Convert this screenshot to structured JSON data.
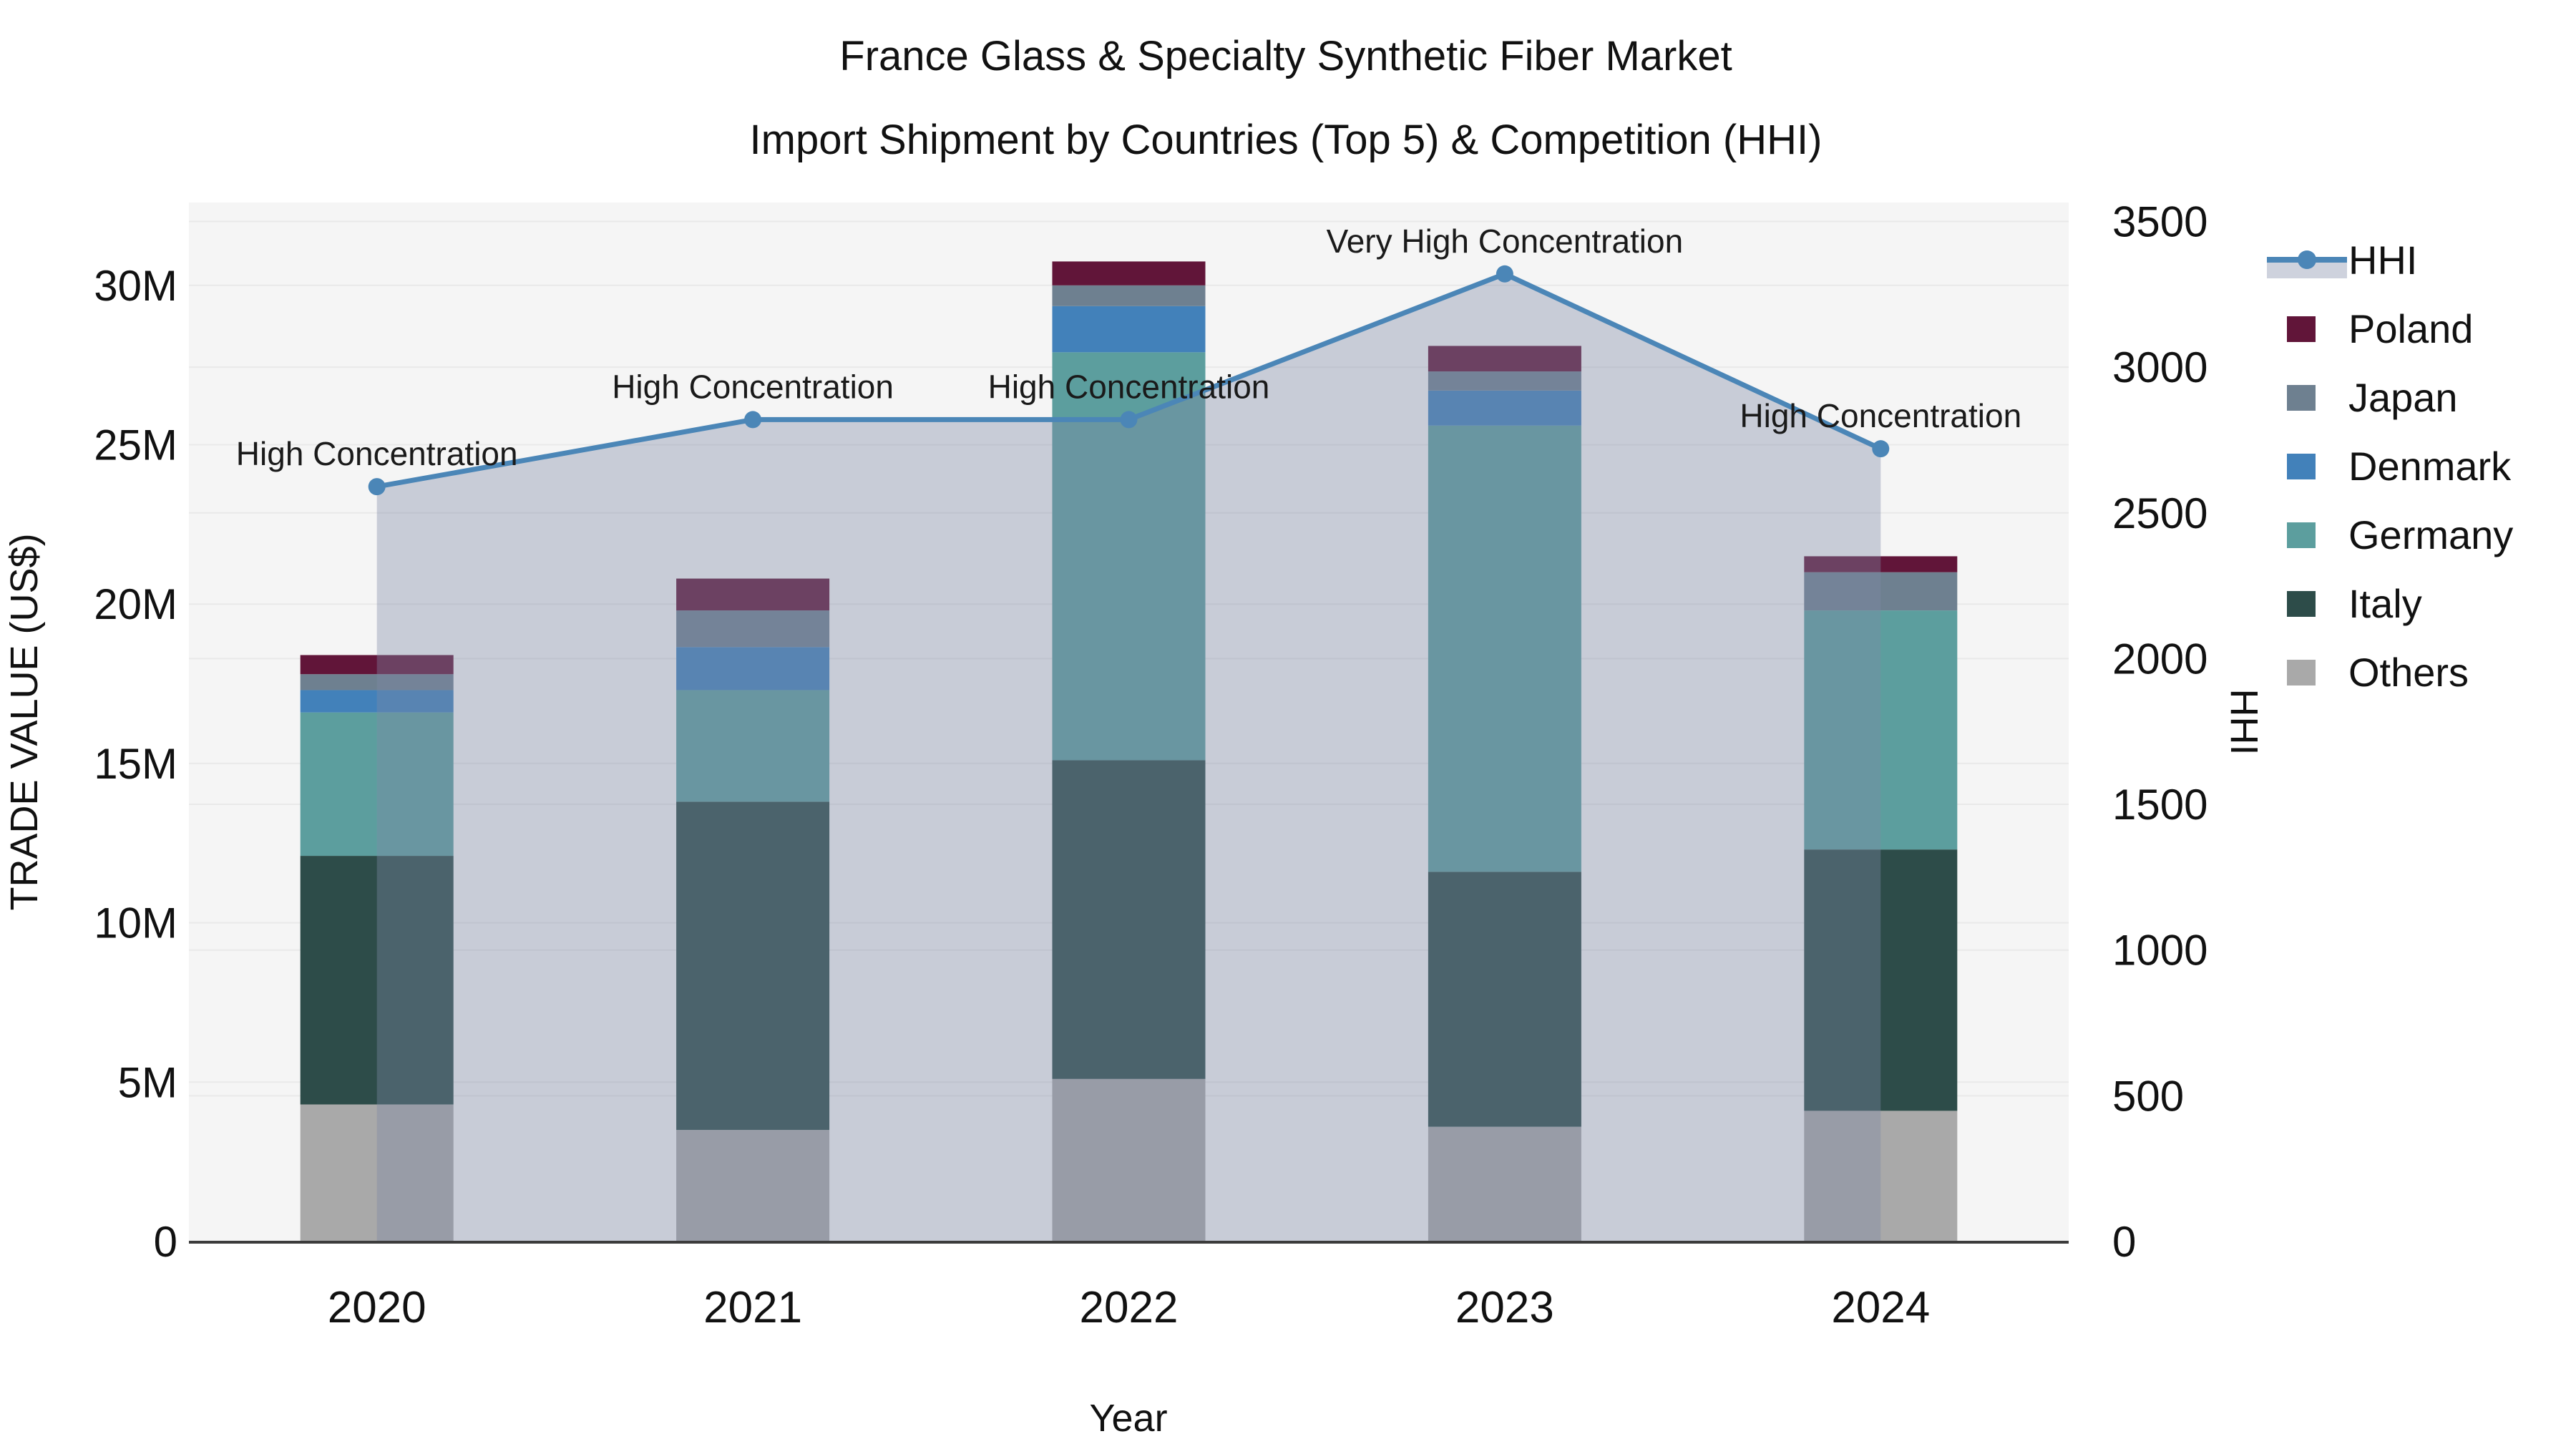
{
  "chart_data": {
    "type": "combo-stacked-bar-line",
    "title_lines": [
      "France Glass & Specialty Synthetic Fiber Market",
      "Import Shipment by Countries (Top 5) & Competition (HHI)"
    ],
    "xlabel": "Year",
    "ylabel_left": "TRADE VALUE (US$)",
    "ylabel_right": "HHI",
    "categories": [
      "2020",
      "2021",
      "2022",
      "2023",
      "2024"
    ],
    "stack_series": [
      {
        "name": "Others",
        "color": "#a9a9a9",
        "values": [
          4.3,
          3.5,
          5.1,
          3.6,
          4.1
        ]
      },
      {
        "name": "Italy",
        "color": "#2d4c49",
        "values": [
          7.8,
          10.3,
          10.0,
          8.0,
          8.2
        ]
      },
      {
        "name": "Germany",
        "color": "#5c9e9e",
        "values": [
          4.5,
          3.5,
          12.8,
          14.0,
          7.5
        ]
      },
      {
        "name": "Denmark",
        "color": "#4281ba",
        "values": [
          0.7,
          1.35,
          1.45,
          1.1,
          0
        ]
      },
      {
        "name": "Japan",
        "color": "#6e8090",
        "values": [
          0.5,
          1.15,
          0.65,
          0.6,
          1.2
        ]
      },
      {
        "name": "Poland",
        "color": "#611539",
        "values": [
          0.6,
          1.0,
          0.75,
          0.8,
          0.5
        ]
      }
    ],
    "line_series": {
      "name": "HHI",
      "color": "#4b86b7",
      "area_fill": "rgba(127,138,165,0.38)",
      "values": [
        2590,
        2820,
        2820,
        3320,
        2720
      ]
    },
    "annotations": [
      "High Concentration",
      "High Concentration",
      "High Concentration",
      "Very High Concentration",
      "High Concentration"
    ],
    "left_ticks": [
      0,
      5,
      10,
      15,
      20,
      25,
      30
    ],
    "left_tick_labels": [
      "0",
      "5M",
      "10M",
      "15M",
      "20M",
      "25M",
      "30M"
    ],
    "right_ticks": [
      0,
      500,
      1000,
      1500,
      2000,
      2500,
      3000,
      3500
    ],
    "right_tick_labels": [
      "0",
      "500",
      "1000",
      "1500",
      "2000",
      "2500",
      "3000",
      "3500"
    ],
    "axis_ranges": {
      "left": [
        0,
        32.6
      ],
      "right": [
        0,
        3565
      ]
    },
    "grid": true,
    "legend_position": "right",
    "legend_order": [
      "HHI",
      "Poland",
      "Japan",
      "Denmark",
      "Germany",
      "Italy",
      "Others"
    ]
  },
  "colors": {
    "plot_bg": "#f5f5f5",
    "grid": "#e9e9e9",
    "axis_line": "#3c3c3c",
    "text": "#111111"
  }
}
